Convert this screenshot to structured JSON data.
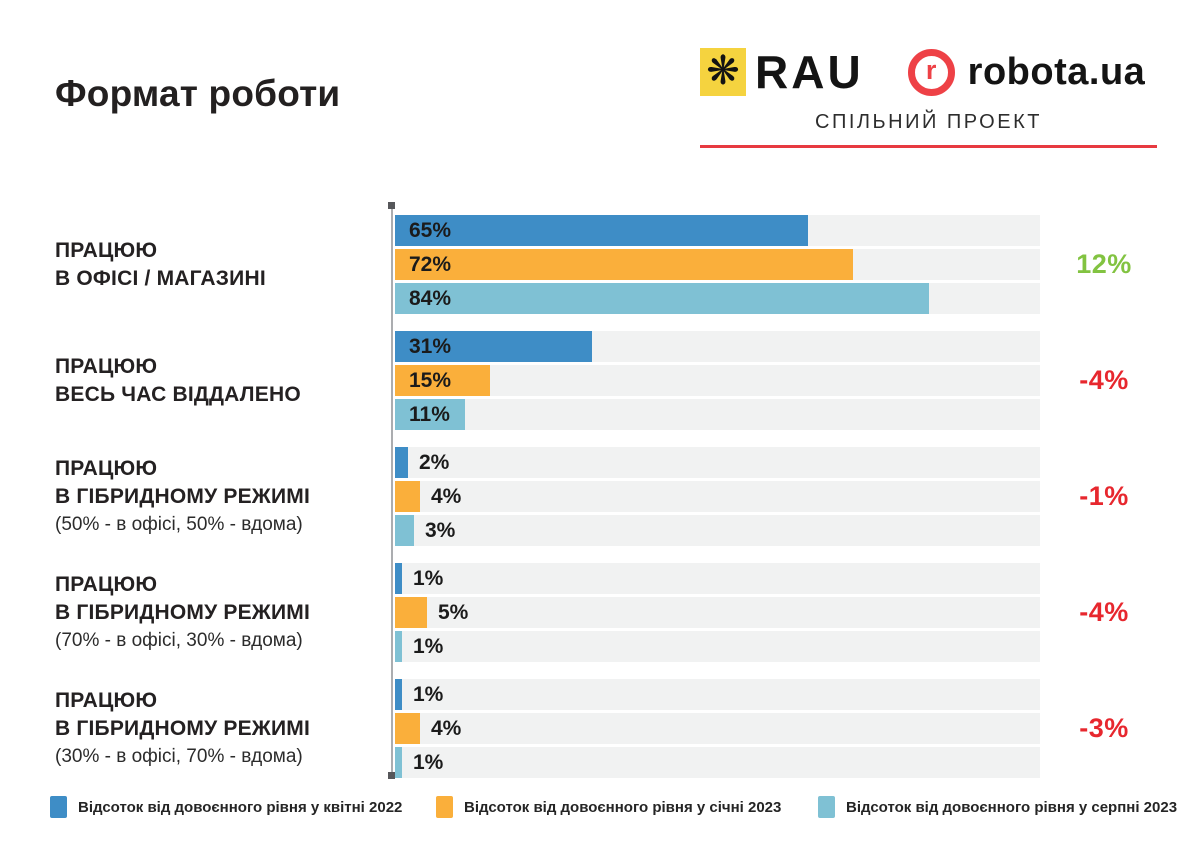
{
  "header": {
    "title": "Формат роботи",
    "rau_logo_text": "RAU",
    "robota_r": "r",
    "robota_logo_text": "robota.ua",
    "subtitle": "СПІЛЬНИЙ ПРОЕКТ"
  },
  "colors": {
    "series": [
      "#3E8DC6",
      "#FAAF3B",
      "#7FC1D4"
    ],
    "track": "#F1F2F2",
    "positive": "#82C341",
    "negative": "#E7272E",
    "accent_red": "#E73A40",
    "rau_yellow": "#F5D33F"
  },
  "chart_data": {
    "type": "bar",
    "orientation": "horizontal",
    "title": "Формат роботи",
    "value_suffix": "%",
    "xlim": [
      0,
      100
    ],
    "grid": false,
    "legend_position": "bottom",
    "series_names": [
      "Відсоток від довоєнного рівня у квітні 2022",
      "Відсоток від довоєнного рівня у січні 2023",
      "Відсоток від довоєнного рівня у серпні 2023"
    ],
    "groups": [
      {
        "label_lines": [
          "ПРАЦЮЮ",
          "В ОФІСІ / МАГАЗИНІ"
        ],
        "sublabel": "",
        "values": [
          65,
          72,
          84
        ],
        "change": "12%",
        "change_type": "positive"
      },
      {
        "label_lines": [
          "ПРАЦЮЮ",
          "ВЕСЬ ЧАС ВІДДАЛЕНО"
        ],
        "sublabel": "",
        "values": [
          31,
          15,
          11
        ],
        "change": "-4%",
        "change_type": "negative"
      },
      {
        "label_lines": [
          "ПРАЦЮЮ",
          "В ГІБРИДНОМУ РЕЖИМІ"
        ],
        "sublabel": "(50% - в офісі, 50% - вдома)",
        "values": [
          2,
          4,
          3
        ],
        "change": "-1%",
        "change_type": "negative"
      },
      {
        "label_lines": [
          "ПРАЦЮЮ",
          "В ГІБРИДНОМУ РЕЖИМІ"
        ],
        "sublabel": "(70% - в офісі, 30% - вдома)",
        "values": [
          1,
          5,
          1
        ],
        "change": "-4%",
        "change_type": "negative"
      },
      {
        "label_lines": [
          "ПРАЦЮЮ",
          "В ГІБРИДНОМУ РЕЖИМІ"
        ],
        "sublabel": "(30% - в офісі, 70% - вдома)",
        "values": [
          1,
          4,
          1
        ],
        "change": "-3%",
        "change_type": "negative"
      }
    ]
  },
  "legend": {
    "items": [
      {
        "label": "Відсоток від довоєнного рівня у квітні 2022"
      },
      {
        "label": "Відсоток від довоєнного рівня у січні 2023"
      },
      {
        "label": "Відсоток від довоєнного рівня у серпні 2023"
      }
    ]
  }
}
